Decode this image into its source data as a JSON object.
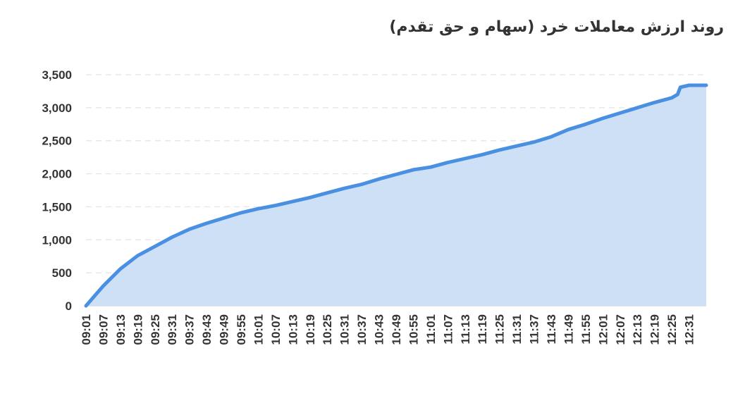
{
  "chart_data": {
    "type": "area",
    "title": "روند ارزش معاملات خرد (سهام و حق تقدم)",
    "xlabel": "",
    "ylabel": "",
    "ylim": [
      0,
      3500
    ],
    "yticks": [
      0,
      500,
      1000,
      1500,
      2000,
      2500,
      3000,
      3500
    ],
    "ytick_labels": [
      "0",
      "500",
      "1,000",
      "1,500",
      "2,000",
      "2,500",
      "3,000",
      "3,500"
    ],
    "xtick_labels": [
      "09:01",
      "09:07",
      "09:13",
      "09:19",
      "09:25",
      "09:31",
      "09:37",
      "09:43",
      "09:49",
      "09:55",
      "10:01",
      "10:07",
      "10:13",
      "10:19",
      "10:25",
      "10:31",
      "10:37",
      "10:43",
      "10:49",
      "10:55",
      "11:01",
      "11:07",
      "11:13",
      "11:19",
      "11:25",
      "11:31",
      "11:37",
      "11:43",
      "11:49",
      "11:55",
      "12:01",
      "12:07",
      "12:13",
      "12:19",
      "12:25",
      "12:31"
    ],
    "grid": true,
    "legend": "none",
    "colors": {
      "line": "#4a90e2",
      "fill": "#cde0f6",
      "grid": "#e3e3e3"
    },
    "series": [
      {
        "x": [
          "09:01",
          "09:07",
          "09:13",
          "09:19",
          "09:25",
          "09:31",
          "09:37",
          "09:43",
          "09:49",
          "09:55",
          "10:01",
          "10:07",
          "10:13",
          "10:19",
          "10:25",
          "10:31",
          "10:37",
          "10:43",
          "10:49",
          "10:55",
          "11:01",
          "11:07",
          "11:13",
          "11:19",
          "11:25",
          "11:31",
          "11:37",
          "11:43",
          "11:49",
          "11:55",
          "12:01",
          "12:07",
          "12:13",
          "12:19",
          "12:25",
          "12:27",
          "12:28",
          "12:31",
          "12:37"
        ],
        "values": [
          0,
          300,
          560,
          760,
          900,
          1040,
          1160,
          1250,
          1330,
          1410,
          1470,
          1520,
          1580,
          1640,
          1710,
          1780,
          1840,
          1920,
          1990,
          2060,
          2100,
          2170,
          2230,
          2290,
          2360,
          2420,
          2480,
          2560,
          2670,
          2750,
          2840,
          2920,
          3000,
          3080,
          3150,
          3200,
          3310,
          3340,
          3340
        ]
      }
    ]
  }
}
